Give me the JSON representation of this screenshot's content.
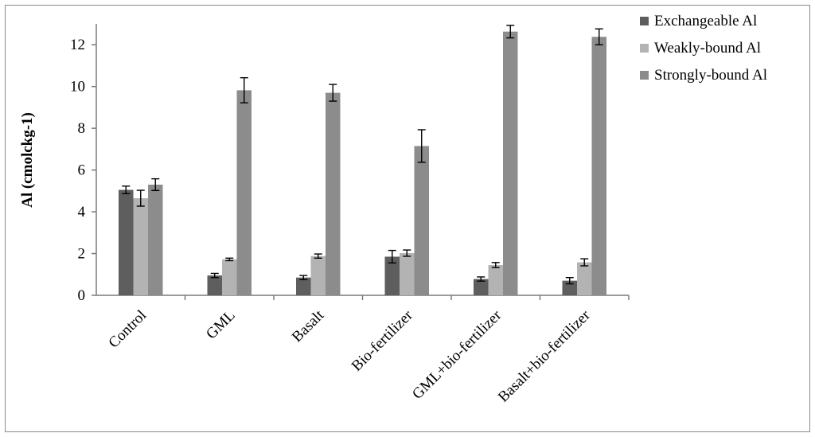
{
  "chart_data": {
    "type": "bar",
    "categories": [
      "Control",
      "GML",
      "Basalt",
      "Bio-fertilizer",
      "GML+bio-fertilizer",
      "Basalt+bio-fertilizer"
    ],
    "series": [
      {
        "name": "Exchangeable Al",
        "color": "#5e5e5e",
        "values": [
          5.05,
          0.95,
          0.85,
          1.85,
          0.78,
          0.7
        ],
        "errors": [
          0.18,
          0.1,
          0.1,
          0.3,
          0.1,
          0.15
        ]
      },
      {
        "name": "Weakly-bound Al",
        "color": "#b3b3b3",
        "values": [
          4.65,
          1.72,
          1.88,
          2.02,
          1.45,
          1.58
        ],
        "errors": [
          0.38,
          0.06,
          0.1,
          0.15,
          0.12,
          0.17
        ]
      },
      {
        "name": "Strongly-bound Al",
        "color": "#8c8c8c",
        "values": [
          5.3,
          9.82,
          9.7,
          7.15,
          12.63,
          12.38
        ],
        "errors": [
          0.28,
          0.6,
          0.4,
          0.78,
          0.3,
          0.38
        ]
      }
    ],
    "xlabel": "",
    "ylabel": "Al (cmolckg-1)",
    "yticks": [
      "0",
      "2",
      "4",
      "6",
      "8",
      "10",
      "12"
    ],
    "ylim": [
      0,
      13
    ],
    "grid": false,
    "legend_position": "top-right"
  }
}
